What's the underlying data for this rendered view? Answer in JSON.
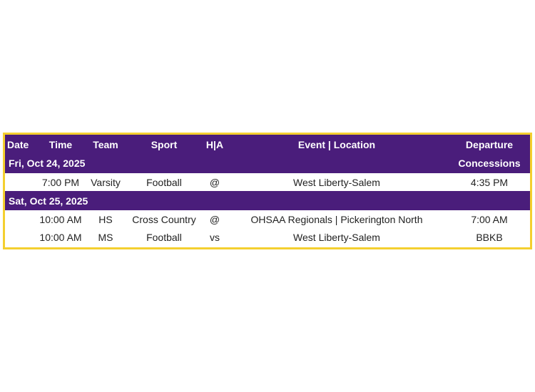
{
  "colors": {
    "header": "#4a1d7b",
    "border": "#f4cf2f"
  },
  "headers": {
    "date": "Date",
    "time": "Time",
    "team": "Team",
    "sport": "Sport",
    "ha": "H|A",
    "event": "Event | Location",
    "departure": "Departure",
    "concessions": "Concessions"
  },
  "days": [
    {
      "date": "Fri, Oct 24, 2025",
      "events": [
        {
          "time": "7:00 PM",
          "team": "Varsity",
          "sport": "Football",
          "ha": "@",
          "event": "West Liberty-Salem",
          "departure": "4:35 PM"
        }
      ]
    },
    {
      "date": "Sat, Oct 25, 2025",
      "events": [
        {
          "time": "10:00 AM",
          "team": "HS",
          "sport": "Cross Country",
          "ha": "@",
          "event": "OHSAA Regionals | Pickerington North",
          "departure": "7:00 AM"
        },
        {
          "time": "10:00 AM",
          "team": "MS",
          "sport": "Football",
          "ha": "vs",
          "event": "West Liberty-Salem",
          "departure": "BBKB"
        }
      ]
    }
  ]
}
